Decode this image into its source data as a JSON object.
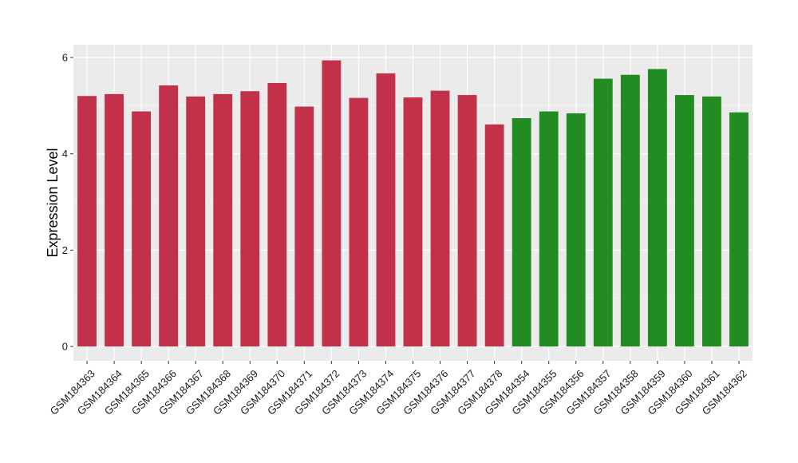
{
  "chart_data": {
    "type": "bar",
    "title": "",
    "xlabel": "",
    "ylabel": "Expression Level",
    "ylim": [
      0,
      6.3
    ],
    "yticks": [
      0,
      2,
      4,
      6
    ],
    "grid": true,
    "legend": "none",
    "categories": [
      "GSM184363",
      "GSM184364",
      "GSM184365",
      "GSM184366",
      "GSM184367",
      "GSM184368",
      "GSM184369",
      "GSM184370",
      "GSM184371",
      "GSM184372",
      "GSM184373",
      "GSM184374",
      "GSM184375",
      "GSM184376",
      "GSM184377",
      "GSM184378",
      "GSM184354",
      "GSM184355",
      "GSM184356",
      "GSM184357",
      "GSM184358",
      "GSM184359",
      "GSM184360",
      "GSM184361",
      "GSM184362"
    ],
    "values": [
      5.2,
      5.24,
      4.88,
      5.42,
      5.19,
      5.24,
      5.3,
      5.47,
      4.98,
      5.94,
      5.16,
      5.67,
      5.17,
      5.31,
      5.22,
      4.61,
      4.74,
      4.88,
      4.84,
      5.56,
      5.64,
      5.76,
      5.22,
      5.19,
      4.86
    ],
    "groups": [
      "red",
      "red",
      "red",
      "red",
      "red",
      "red",
      "red",
      "red",
      "red",
      "red",
      "red",
      "red",
      "red",
      "red",
      "red",
      "red",
      "green",
      "green",
      "green",
      "green",
      "green",
      "green",
      "green",
      "green",
      "green"
    ]
  },
  "colors": {
    "red": "#c3304a",
    "green": "#228b22",
    "panel_bg": "#ebebeb",
    "grid_major": "#ffffff",
    "grid_minor": "#f5f5f5"
  }
}
